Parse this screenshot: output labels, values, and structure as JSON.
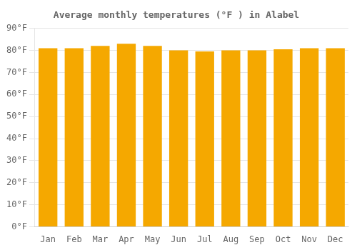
{
  "chart_data": {
    "type": "bar",
    "title": "Average monthly temperatures (°F ) in Alabel",
    "categories": [
      "Jan",
      "Feb",
      "Mar",
      "Apr",
      "May",
      "Jun",
      "Jul",
      "Aug",
      "Sep",
      "Oct",
      "Nov",
      "Dec"
    ],
    "values": [
      81,
      81,
      82,
      83,
      82,
      80,
      79.5,
      80,
      80,
      80.5,
      81,
      81
    ],
    "color": "#F5A800",
    "ylim": [
      0,
      90
    ],
    "yticks": [
      {
        "value": 0,
        "label": "0°F"
      },
      {
        "value": 10,
        "label": "10°F"
      },
      {
        "value": 20,
        "label": "20°F"
      },
      {
        "value": 30,
        "label": "30°F"
      },
      {
        "value": 40,
        "label": "40°F"
      },
      {
        "value": 50,
        "label": "50°F"
      },
      {
        "value": 60,
        "label": "60°F"
      },
      {
        "value": 70,
        "label": "70°F"
      },
      {
        "value": 80,
        "label": "80°F"
      },
      {
        "value": 90,
        "label": "90°F"
      }
    ],
    "grid": true
  }
}
